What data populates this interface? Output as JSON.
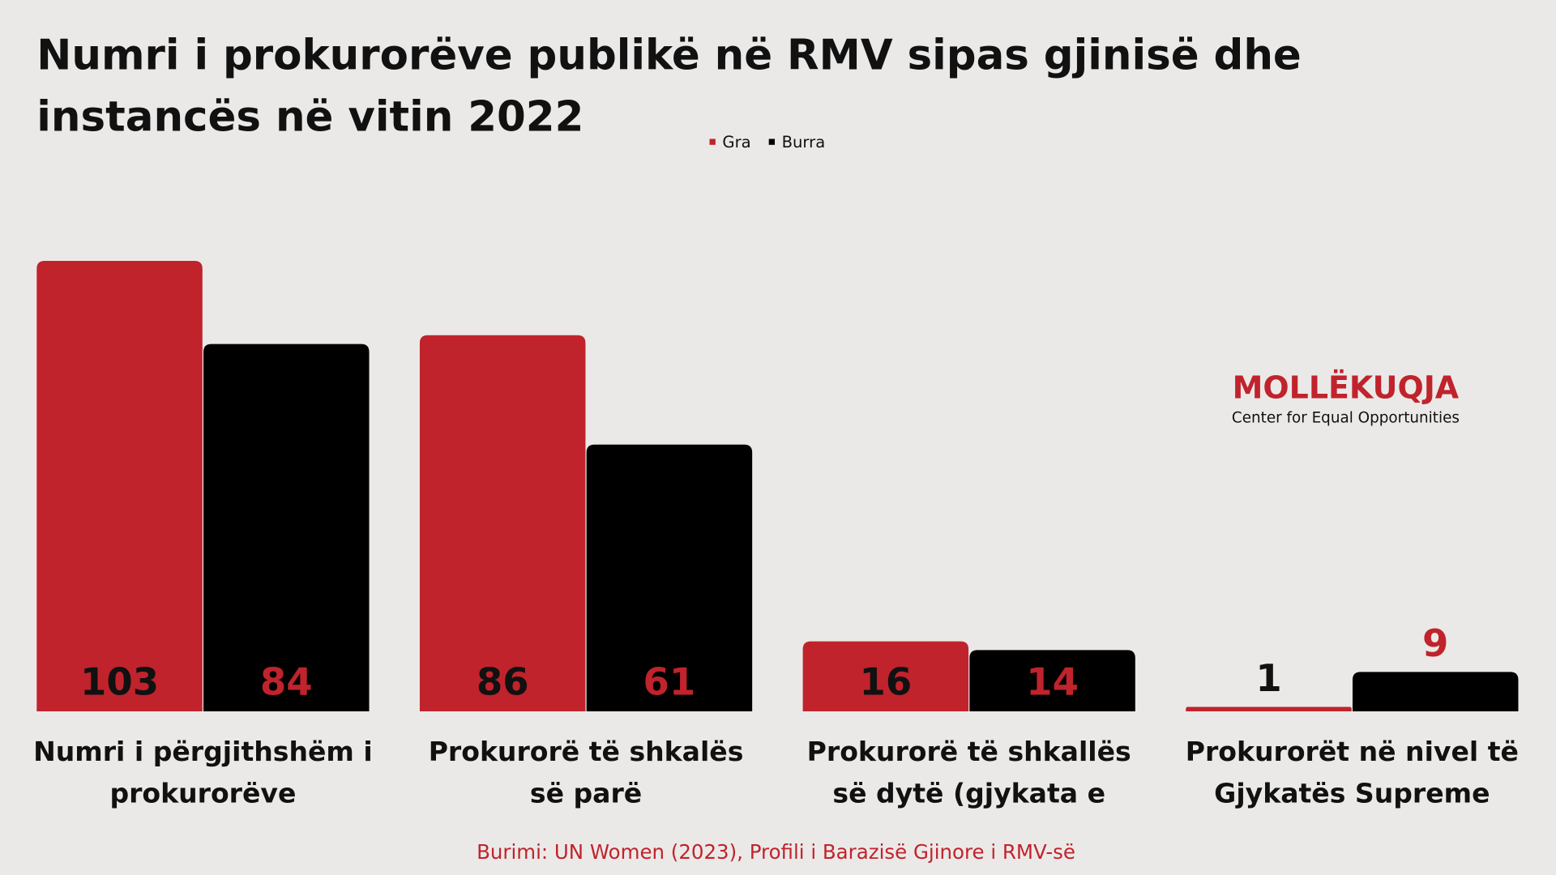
{
  "chart_data": {
    "type": "bar",
    "title": "Numri i prokurorëve publikë në RMV sipas gjinisë dhe instancës në vitin 2022",
    "categories": [
      "Numri i përgjithshëm i prokurorëve",
      "Prokurorë të shkalës së parë",
      "Prokurorë të shkallës së dytë (gjykata e apelit))",
      "Prokurorët në nivel të Gjykatës Supreme"
    ],
    "series": [
      {
        "name": "Gra",
        "color": "#c0232c",
        "label_color": "#111111",
        "values": [
          103,
          86,
          16,
          1
        ]
      },
      {
        "name": "Burra",
        "color": "#000000",
        "label_color": "#c0232c",
        "values": [
          84,
          61,
          14,
          9
        ]
      }
    ],
    "ylim": [
      0,
      103
    ],
    "source": "Burimi: UN Women (2023), Profili i Barazisë Gjinore i RMV-së"
  },
  "logo": {
    "name": "MOLLËKUQJA",
    "tagline": "Center for Equal Opportunities"
  }
}
